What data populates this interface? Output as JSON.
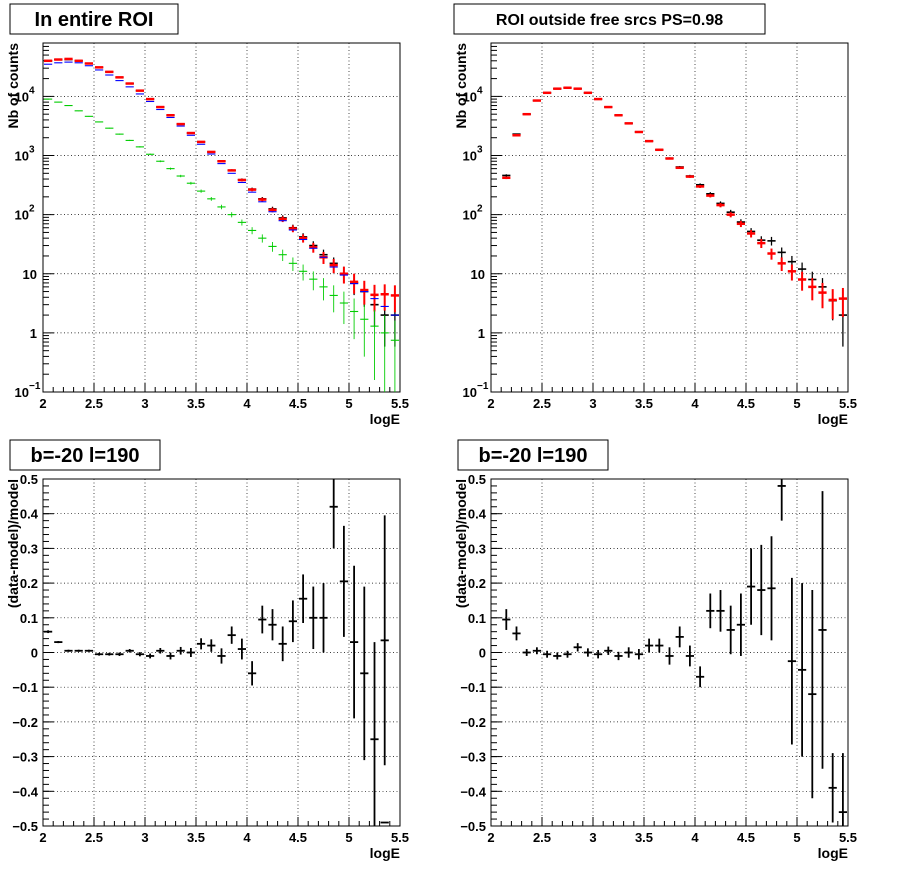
{
  "chart_data": [
    {
      "type": "scatter",
      "title": "In entire ROI",
      "xlabel": "logE",
      "ylabel": "Nb of counts",
      "yscale": "log",
      "xlim": [
        2,
        5.5
      ],
      "ylim": [
        0.1,
        80000
      ],
      "grid": true,
      "xticks": [
        "2",
        "2.5",
        "3",
        "3.5",
        "4",
        "4.5",
        "5",
        "5.5"
      ],
      "yticks": [
        {
          "v": 0.1,
          "label": "10",
          "sup": "−1"
        },
        {
          "v": 1,
          "label": "1",
          "sup": ""
        },
        {
          "v": 10,
          "label": "10",
          "sup": ""
        },
        {
          "v": 100,
          "label": "10",
          "sup": "2"
        },
        {
          "v": 1000,
          "label": "10",
          "sup": "3"
        },
        {
          "v": 10000,
          "label": "10",
          "sup": "4"
        }
      ],
      "bin_centers": [
        2.05,
        2.15,
        2.25,
        2.35,
        2.45,
        2.55,
        2.65,
        2.75,
        2.85,
        2.95,
        3.05,
        3.15,
        3.25,
        3.35,
        3.45,
        3.55,
        3.65,
        3.75,
        3.85,
        3.95,
        4.05,
        4.15,
        4.25,
        4.35,
        4.45,
        4.55,
        4.65,
        4.75,
        4.85,
        4.95,
        5.05,
        5.15,
        5.25,
        5.35,
        5.45
      ],
      "series": [
        {
          "color": "#000000",
          "err_rel": true,
          "values": [
            40000,
            42000,
            42000,
            40000,
            36000,
            31000,
            26000,
            21000,
            16500,
            12500,
            9000,
            6600,
            4800,
            3400,
            2400,
            1700,
            1150,
            800,
            560,
            390,
            270,
            185,
            125,
            88,
            60,
            42,
            30,
            21,
            15,
            10,
            7,
            5,
            3,
            2,
            2
          ]
        },
        {
          "color": "#ff0000",
          "err_rel": true,
          "values": [
            40000,
            42000,
            43000,
            40000,
            36000,
            31000,
            26000,
            21000,
            16500,
            12500,
            9000,
            6600,
            4800,
            3400,
            2400,
            1700,
            1150,
            800,
            560,
            385,
            265,
            180,
            120,
            84,
            58,
            40,
            28,
            19,
            14,
            10,
            7.3,
            5.3,
            4.4,
            4.5,
            4.3
          ]
        },
        {
          "color": "#0000ff",
          "err_rel": false,
          "values": [
            35000,
            37000,
            38000,
            37000,
            33000,
            28000,
            23000,
            18500,
            14500,
            11000,
            8200,
            6000,
            4400,
            3150,
            2200,
            1550,
            1060,
            730,
            500,
            350,
            240,
            165,
            112,
            79,
            55,
            38,
            27,
            19,
            13,
            9.5,
            6.8,
            5,
            3.8,
            2.8,
            2
          ]
        },
        {
          "color": "#00cc00",
          "err_rel": true,
          "values": [
            9000,
            8000,
            7000,
            5700,
            4600,
            3700,
            2900,
            2300,
            1800,
            1400,
            1050,
            800,
            600,
            450,
            340,
            250,
            185,
            135,
            100,
            74,
            54,
            40,
            29,
            21,
            15,
            11,
            8.1,
            6,
            4.3,
            3.2,
            2.3,
            1.7,
            1.3,
            1,
            0.75
          ]
        }
      ]
    },
    {
      "type": "scatter",
      "title": "ROI outside free srcs PS=0.98",
      "xlabel": "logE",
      "ylabel": "Nb of counts",
      "yscale": "log",
      "xlim": [
        2,
        5.5
      ],
      "ylim": [
        0.1,
        80000
      ],
      "grid": true,
      "xticks": [
        "2",
        "2.5",
        "3",
        "3.5",
        "4",
        "4.5",
        "5",
        "5.5"
      ],
      "yticks": [
        {
          "v": 0.1,
          "label": "10",
          "sup": "−1"
        },
        {
          "v": 1,
          "label": "1",
          "sup": ""
        },
        {
          "v": 10,
          "label": "10",
          "sup": ""
        },
        {
          "v": 100,
          "label": "10",
          "sup": "2"
        },
        {
          "v": 1000,
          "label": "10",
          "sup": "3"
        },
        {
          "v": 10000,
          "label": "10",
          "sup": "4"
        }
      ],
      "bin_centers": [
        2.15,
        2.25,
        2.35,
        2.45,
        2.55,
        2.65,
        2.75,
        2.85,
        2.95,
        3.05,
        3.15,
        3.25,
        3.35,
        3.45,
        3.55,
        3.65,
        3.75,
        3.85,
        3.95,
        4.05,
        4.15,
        4.25,
        4.35,
        4.45,
        4.55,
        4.65,
        4.75,
        4.85,
        4.95,
        5.05,
        5.15,
        5.25,
        5.35,
        5.45
      ],
      "series": [
        {
          "color": "#000000",
          "err_rel": true,
          "values": [
            460,
            2300,
            5000,
            8500,
            11500,
            13500,
            14000,
            13500,
            11500,
            9000,
            6600,
            4800,
            3500,
            2500,
            1750,
            1250,
            900,
            640,
            450,
            320,
            225,
            155,
            110,
            75,
            52,
            37,
            36,
            23,
            16,
            12,
            8,
            6,
            3.5,
            2
          ]
        },
        {
          "color": "#ff0000",
          "err_rel": true,
          "values": [
            420,
            2200,
            5000,
            8500,
            11500,
            13500,
            14000,
            13500,
            11500,
            9000,
            6600,
            4800,
            3500,
            2500,
            1750,
            1250,
            890,
            620,
            440,
            300,
            210,
            145,
            100,
            70,
            48,
            33,
            22,
            15,
            11,
            8,
            6,
            4.8,
            3.6,
            3.8
          ]
        }
      ]
    },
    {
      "type": "scatter",
      "title": "b=-20 l=190",
      "xlabel": "logE",
      "ylabel": "(data-model)/model",
      "xlim": [
        2,
        5.5
      ],
      "ylim": [
        -0.5,
        0.5
      ],
      "grid": true,
      "xticks": [
        "2",
        "2.5",
        "3",
        "3.5",
        "4",
        "4.5",
        "5",
        "5.5"
      ],
      "yticks": [
        "−0.5",
        "−0.4",
        "−0.3",
        "−0.2",
        "−0.1",
        "0",
        "0.1",
        "0.2",
        "0.3",
        "0.4",
        "0.5"
      ],
      "x": [
        2.05,
        2.15,
        2.25,
        2.35,
        2.45,
        2.55,
        2.65,
        2.75,
        2.85,
        2.95,
        3.05,
        3.15,
        3.25,
        3.35,
        3.45,
        3.55,
        3.65,
        3.75,
        3.85,
        3.95,
        4.05,
        4.15,
        4.25,
        4.35,
        4.45,
        4.55,
        4.65,
        4.75,
        4.85,
        4.95,
        5.05,
        5.15,
        5.25,
        5.35
      ],
      "y": [
        0.06,
        0.03,
        0.005,
        0.005,
        0.005,
        -0.005,
        -0.005,
        -0.005,
        0.005,
        -0.005,
        -0.01,
        0.005,
        -0.01,
        0.005,
        0.0,
        0.025,
        0.02,
        -0.01,
        0.05,
        0.01,
        -0.06,
        0.095,
        0.08,
        0.025,
        0.09,
        0.155,
        0.1,
        0.1,
        0.42,
        0.205,
        0.03,
        -0.06,
        -0.25,
        0.035
      ],
      "yerr": [
        0.004,
        0.003,
        0.003,
        0.003,
        0.003,
        0.004,
        0.004,
        0.005,
        0.005,
        0.006,
        0.007,
        0.008,
        0.01,
        0.011,
        0.013,
        0.016,
        0.018,
        0.022,
        0.025,
        0.03,
        0.035,
        0.04,
        0.045,
        0.05,
        0.06,
        0.07,
        0.09,
        0.1,
        0.12,
        0.16,
        0.22,
        0.25,
        0.28,
        0.36
      ],
      "extra_marker": {
        "x": 5.35,
        "y": -0.49
      }
    },
    {
      "type": "scatter",
      "title": "b=-20 l=190",
      "xlabel": "logE",
      "ylabel": "(data-model)/model",
      "xlim": [
        2,
        5.5
      ],
      "ylim": [
        -0.5,
        0.5
      ],
      "grid": true,
      "xticks": [
        "2",
        "2.5",
        "3",
        "3.5",
        "4",
        "4.5",
        "5",
        "5.5"
      ],
      "yticks": [
        "−0.5",
        "−0.4",
        "−0.3",
        "−0.2",
        "−0.1",
        "0",
        "0.1",
        "0.2",
        "0.3",
        "0.4",
        "0.5"
      ],
      "x": [
        2.15,
        2.25,
        2.35,
        2.45,
        2.55,
        2.65,
        2.75,
        2.85,
        2.95,
        3.05,
        3.15,
        3.25,
        3.35,
        3.45,
        3.55,
        3.65,
        3.75,
        3.85,
        3.95,
        4.05,
        4.15,
        4.25,
        4.35,
        4.45,
        4.55,
        4.65,
        4.75,
        4.85,
        4.95,
        5.05,
        5.15,
        5.25,
        5.35,
        5.45
      ],
      "y": [
        0.095,
        0.055,
        0.0,
        0.005,
        -0.005,
        -0.01,
        -0.005,
        0.015,
        0.0,
        -0.005,
        0.005,
        -0.01,
        0.0,
        -0.005,
        0.02,
        0.02,
        -0.01,
        0.045,
        -0.01,
        -0.07,
        0.12,
        0.12,
        0.065,
        0.08,
        0.19,
        0.18,
        0.185,
        0.48,
        -0.025,
        -0.05,
        -0.12,
        0.065,
        -0.39,
        -0.46
      ],
      "yerr": [
        0.03,
        0.02,
        0.01,
        0.01,
        0.01,
        0.01,
        0.01,
        0.012,
        0.012,
        0.012,
        0.012,
        0.012,
        0.015,
        0.015,
        0.02,
        0.02,
        0.025,
        0.03,
        0.03,
        0.03,
        0.05,
        0.06,
        0.07,
        0.09,
        0.11,
        0.13,
        0.15,
        0.1,
        0.24,
        0.25,
        0.3,
        0.4,
        0.1,
        0.17
      ]
    }
  ]
}
